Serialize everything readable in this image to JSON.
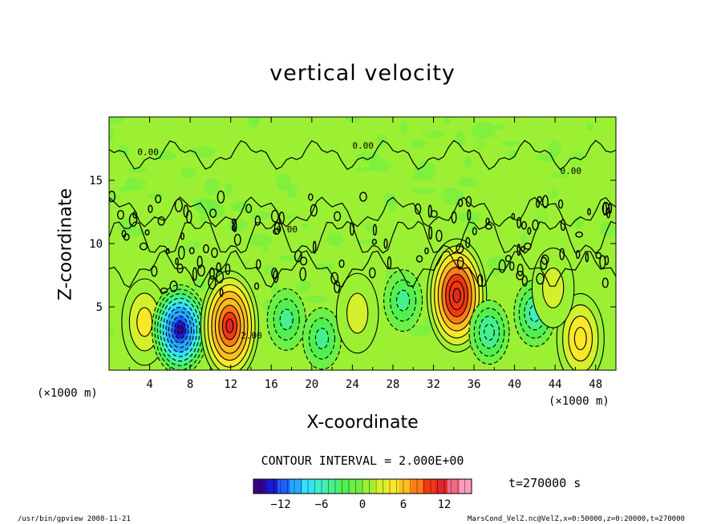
{
  "chart_data": {
    "type": "heatmap",
    "title": "vertical velocity",
    "xlabel": "X-coordinate",
    "ylabel": "Z-coordinate",
    "x_unit_label": "(×1000 m)",
    "x_ticks": [
      "4",
      "8",
      "12",
      "16",
      "20",
      "24",
      "28",
      "32",
      "36",
      "40",
      "44",
      "48"
    ],
    "y_ticks": [
      "5",
      "10",
      "15"
    ],
    "xlim": [
      0,
      50
    ],
    "ylim": [
      0,
      20
    ],
    "contour_interval": "CONTOUR INTERVAL = 2.000E+00",
    "colorbar": {
      "range": [
        -16,
        16
      ],
      "ticks": [
        "−12",
        "−6",
        "0",
        "6",
        "12"
      ],
      "colors": [
        "#3a0088",
        "#1a1ad0",
        "#1e60ff",
        "#27a8ff",
        "#36e0ff",
        "#3cf0c8",
        "#46f08c",
        "#50f050",
        "#6cf046",
        "#9cf034",
        "#d4f02c",
        "#f8e828",
        "#ffbe20",
        "#ff7c14",
        "#f23810",
        "#e02828",
        "#f06a86",
        "#ff9cbe"
      ]
    },
    "features": [
      {
        "x": 3.5,
        "z": 3.8,
        "w": 4,
        "kind": "updraft"
      },
      {
        "x": 7.0,
        "z": 3.2,
        "w": -15,
        "kind": "downdraft"
      },
      {
        "x": 11.9,
        "z": 3.5,
        "w": 11,
        "kind": "updraft"
      },
      {
        "x": 17.5,
        "z": 4.0,
        "w": -4,
        "kind": "downdraft"
      },
      {
        "x": 21.0,
        "z": 2.5,
        "w": -4,
        "kind": "downdraft"
      },
      {
        "x": 24.5,
        "z": 4.5,
        "w": 2,
        "kind": "updraft"
      },
      {
        "x": 29.0,
        "z": 5.5,
        "w": -4,
        "kind": "downdraft"
      },
      {
        "x": 34.3,
        "z": 5.9,
        "w": 12,
        "kind": "updraft"
      },
      {
        "x": 37.5,
        "z": 3.0,
        "w": -5,
        "kind": "downdraft"
      },
      {
        "x": 42.0,
        "z": 4.5,
        "w": -6,
        "kind": "downdraft"
      },
      {
        "x": 46.5,
        "z": 2.5,
        "w": 5,
        "kind": "updraft"
      },
      {
        "x": 43.8,
        "z": 6.5,
        "w": 2,
        "kind": "updraft"
      }
    ],
    "contour_labels": [
      "0.00",
      "0.00",
      "0.00",
      "0.00",
      "2.00"
    ]
  },
  "annotations": {
    "time": "t=270000 s",
    "footer_left": "/usr/bin/gpview  2008-11-21",
    "footer_right": "MarsCond_VelZ.nc@VelZ,x=0:50000,z=0:20000,t=270000"
  }
}
